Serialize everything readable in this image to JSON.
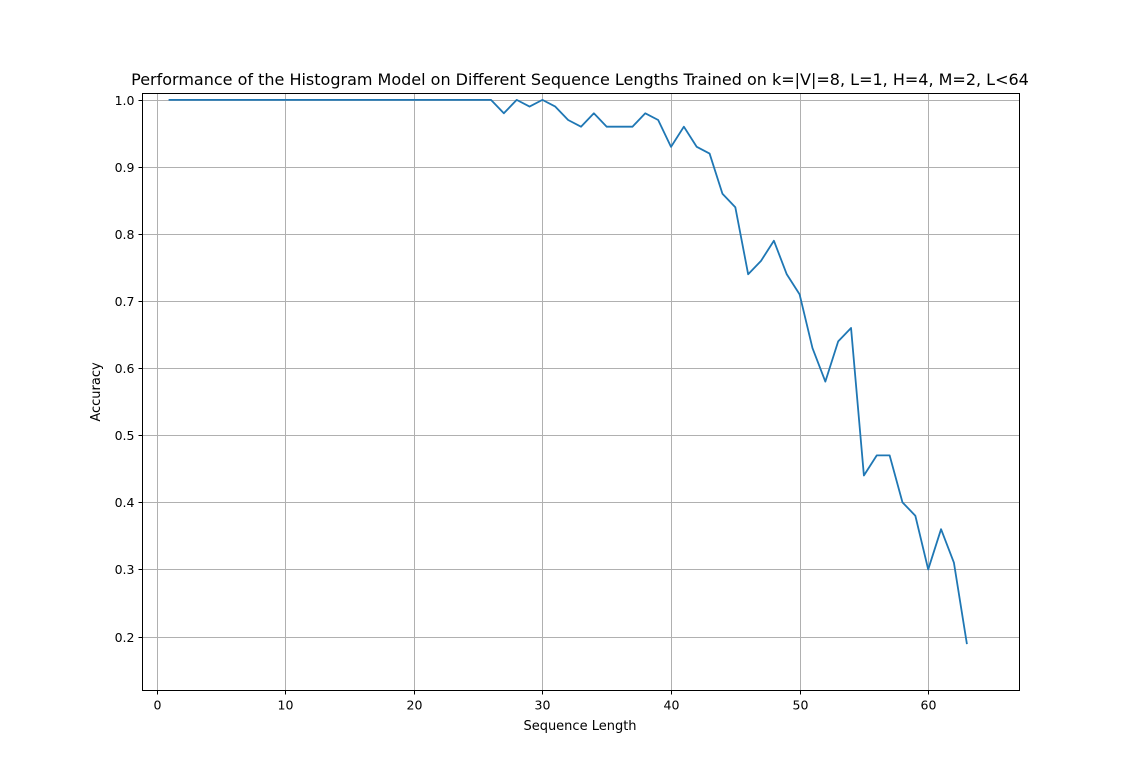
{
  "chart_data": {
    "type": "line",
    "title": "Performance of the Histogram Model on Different Sequence Lengths Trained on k=|V|=8, L=1, H=4, M=2, L<64",
    "xlabel": "Sequence Length",
    "ylabel": "Accuracy",
    "xlim": [
      -1.1,
      67.1
    ],
    "ylim": [
      0.1195,
      1.0095
    ],
    "xticks": [
      0,
      10,
      20,
      30,
      40,
      50,
      60
    ],
    "xtick_labels": [
      "0",
      "10",
      "20",
      "30",
      "40",
      "50",
      "60"
    ],
    "yticks": [
      0.2,
      0.3,
      0.4,
      0.5,
      0.6,
      0.7,
      0.8,
      0.9,
      1.0
    ],
    "ytick_labels": [
      "0.2",
      "0.3",
      "0.4",
      "0.5",
      "0.6",
      "0.7",
      "0.8",
      "0.9",
      "1.0"
    ],
    "grid": true,
    "color": "#1f77b4",
    "x": [
      1,
      2,
      3,
      4,
      5,
      6,
      7,
      8,
      9,
      10,
      11,
      12,
      13,
      14,
      15,
      16,
      17,
      18,
      19,
      20,
      21,
      22,
      23,
      24,
      25,
      26,
      27,
      28,
      29,
      30,
      31,
      32,
      33,
      34,
      35,
      36,
      37,
      38,
      39,
      40,
      41,
      42,
      43,
      44,
      45,
      46,
      47,
      48,
      49,
      50,
      51,
      52,
      53,
      54,
      55,
      56,
      57,
      58,
      59,
      60,
      61,
      62,
      63
    ],
    "y": [
      1.0,
      1.0,
      1.0,
      1.0,
      1.0,
      1.0,
      1.0,
      1.0,
      1.0,
      1.0,
      1.0,
      1.0,
      1.0,
      1.0,
      1.0,
      1.0,
      1.0,
      1.0,
      1.0,
      1.0,
      1.0,
      1.0,
      1.0,
      1.0,
      1.0,
      1.0,
      0.98,
      1.0,
      0.99,
      1.0,
      0.99,
      0.97,
      0.96,
      0.98,
      0.96,
      0.96,
      0.96,
      0.98,
      0.97,
      0.93,
      0.96,
      0.93,
      0.92,
      0.86,
      0.84,
      0.74,
      0.76,
      0.79,
      0.74,
      0.71,
      0.63,
      0.58,
      0.64,
      0.66,
      0.44,
      0.47,
      0.47,
      0.4,
      0.38,
      0.3,
      0.36,
      0.31,
      0.19
    ]
  }
}
